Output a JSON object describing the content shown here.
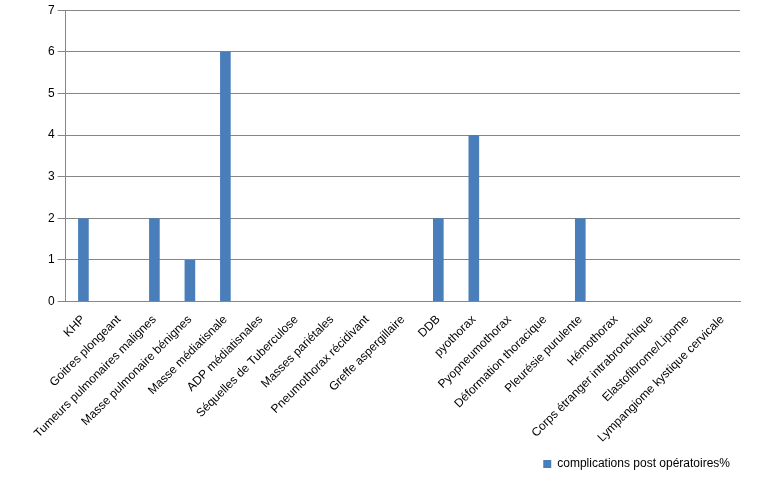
{
  "chart_data": {
    "type": "bar",
    "categories": [
      "KHP",
      "Goitres plongeant",
      "Tumeurs pulmonaires malignes",
      "Masse pulmonaire bénignes",
      "Masse médiatisnale",
      "ADP médiatisnales",
      "Séquelles de Tuberculose",
      "Masses pariétales",
      "Pneumothorax récidivant",
      "Greffe aspergillaire",
      "DDB",
      "pyothorax",
      "Pyopneumothorax",
      "Déformation thoracique",
      "Pleurésie purulente",
      "Hémothorax",
      "Corps étranger intrabronchique",
      "Elastofibrome/Lipome",
      "Lympangiome kystique cervicale"
    ],
    "series": [
      {
        "name": "complications post opératoires%",
        "color": "#4a7ebb",
        "values": [
          2,
          0,
          2,
          1,
          6,
          0,
          0,
          0,
          0,
          0,
          2,
          4,
          0,
          0,
          2,
          0,
          0,
          0,
          0
        ]
      }
    ],
    "ylim": [
      0,
      7
    ],
    "yticks": [
      0,
      1,
      2,
      3,
      4,
      5,
      6,
      7
    ],
    "grid": true,
    "legend": "bottom-right"
  }
}
